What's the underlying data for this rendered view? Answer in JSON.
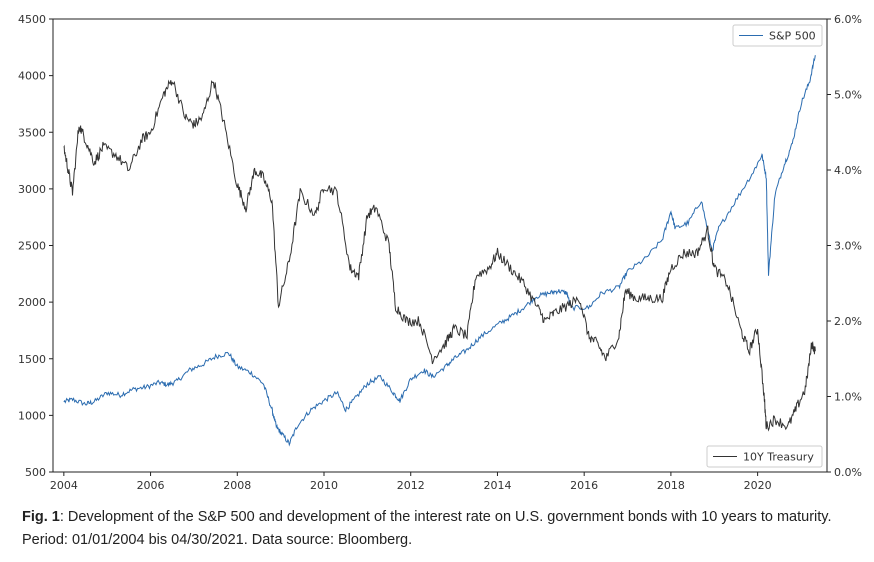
{
  "caption": {
    "label": "Fig. 1",
    "text": ": Development of the S&P 500 and development of the interest rate on U.S. government bonds with 10 years to maturity. Period: 01/01/2004 bis 04/30/2021. Data source: Bloomberg."
  },
  "chart_data": {
    "type": "line",
    "title": "",
    "xlabel": "",
    "x_range": [
      2003.75,
      2021.6
    ],
    "x_ticks": [
      2004,
      2006,
      2008,
      2010,
      2012,
      2014,
      2016,
      2018,
      2020
    ],
    "x_tick_labels": [
      "2004",
      "2006",
      "2008",
      "2010",
      "2012",
      "2014",
      "2016",
      "2018",
      "2020"
    ],
    "left_axis": {
      "ylim": [
        500,
        4500
      ],
      "ticks": [
        500,
        1000,
        1500,
        2000,
        2500,
        3000,
        3500,
        4000,
        4500
      ],
      "tick_labels": [
        "500",
        "1000",
        "1500",
        "2000",
        "2500",
        "3000",
        "3500",
        "4000",
        "4500"
      ]
    },
    "right_axis": {
      "ylim": [
        0.0,
        6.0
      ],
      "ticks": [
        0,
        1,
        2,
        3,
        4,
        5,
        6
      ],
      "tick_labels": [
        "0.0%",
        "1.0%",
        "2.0%",
        "3.0%",
        "4.0%",
        "5.0%",
        "6.0%"
      ]
    },
    "grid": false,
    "series": [
      {
        "name": "S&P 500",
        "axis": "left",
        "color": "#2b6cb0",
        "legend_position": "top-right",
        "x": [
          2004.0,
          2004.2,
          2004.5,
          2004.7,
          2005.0,
          2005.3,
          2005.6,
          2005.9,
          2006.2,
          2006.4,
          2006.6,
          2006.9,
          2007.2,
          2007.5,
          2007.8,
          2008.0,
          2008.3,
          2008.6,
          2008.8,
          2008.9,
          2009.0,
          2009.2,
          2009.4,
          2009.7,
          2010.0,
          2010.3,
          2010.5,
          2010.7,
          2011.0,
          2011.3,
          2011.6,
          2011.75,
          2012.0,
          2012.3,
          2012.5,
          2012.8,
          2013.0,
          2013.3,
          2013.6,
          2014.0,
          2014.3,
          2014.6,
          2014.9,
          2015.2,
          2015.4,
          2015.6,
          2015.7,
          2016.1,
          2016.4,
          2016.8,
          2017.0,
          2017.4,
          2017.8,
          2018.0,
          2018.1,
          2018.4,
          2018.7,
          2018.95,
          2019.1,
          2019.5,
          2019.9,
          2020.1,
          2020.2,
          2020.25,
          2020.4,
          2020.6,
          2020.8,
          2021.0,
          2021.2,
          2021.33
        ],
        "y": [
          1120,
          1140,
          1100,
          1120,
          1200,
          1180,
          1230,
          1250,
          1290,
          1270,
          1300,
          1400,
          1450,
          1520,
          1550,
          1430,
          1380,
          1280,
          1050,
          900,
          850,
          750,
          920,
          1050,
          1130,
          1200,
          1050,
          1140,
          1280,
          1340,
          1200,
          1130,
          1320,
          1400,
          1340,
          1430,
          1500,
          1580,
          1690,
          1800,
          1870,
          1950,
          2050,
          2080,
          2100,
          2080,
          1950,
          1950,
          2080,
          2130,
          2270,
          2380,
          2550,
          2800,
          2650,
          2700,
          2900,
          2450,
          2650,
          2900,
          3150,
          3300,
          3100,
          2250,
          2950,
          3200,
          3400,
          3750,
          3950,
          4180
        ]
      },
      {
        "name": "10Y Treasury",
        "axis": "right",
        "color": "#333333",
        "legend_position": "bottom-right",
        "x": [
          2004.0,
          2004.1,
          2004.2,
          2004.35,
          2004.5,
          2004.7,
          2004.9,
          2005.2,
          2005.5,
          2005.8,
          2006.0,
          2006.3,
          2006.5,
          2006.8,
          2007.0,
          2007.2,
          2007.45,
          2007.7,
          2008.0,
          2008.2,
          2008.4,
          2008.6,
          2008.8,
          2008.95,
          2009.2,
          2009.45,
          2009.8,
          2010.0,
          2010.3,
          2010.6,
          2010.8,
          2011.0,
          2011.2,
          2011.5,
          2011.65,
          2011.9,
          2012.2,
          2012.5,
          2012.8,
          2013.0,
          2013.3,
          2013.5,
          2013.8,
          2014.0,
          2014.3,
          2014.6,
          2014.9,
          2015.1,
          2015.3,
          2015.6,
          2015.9,
          2016.1,
          2016.3,
          2016.5,
          2016.8,
          2016.95,
          2017.2,
          2017.5,
          2017.8,
          2018.0,
          2018.3,
          2018.6,
          2018.85,
          2019.0,
          2019.3,
          2019.6,
          2019.8,
          2020.0,
          2020.15,
          2020.2,
          2020.4,
          2020.7,
          2020.9,
          2021.1,
          2021.25,
          2021.33
        ],
        "y": [
          4.3,
          4.0,
          3.7,
          4.6,
          4.4,
          4.1,
          4.3,
          4.2,
          4.0,
          4.4,
          4.5,
          5.0,
          5.2,
          4.7,
          4.6,
          4.7,
          5.2,
          4.6,
          3.8,
          3.5,
          4.0,
          3.9,
          3.6,
          2.2,
          2.8,
          3.7,
          3.4,
          3.8,
          3.7,
          2.7,
          2.6,
          3.4,
          3.5,
          3.0,
          2.2,
          2.0,
          2.0,
          1.5,
          1.7,
          1.9,
          1.8,
          2.6,
          2.7,
          2.9,
          2.7,
          2.5,
          2.2,
          2.0,
          2.1,
          2.2,
          2.3,
          1.8,
          1.7,
          1.5,
          1.8,
          2.4,
          2.3,
          2.3,
          2.3,
          2.7,
          2.9,
          2.9,
          3.2,
          2.7,
          2.5,
          1.9,
          1.6,
          1.9,
          1.0,
          0.6,
          0.7,
          0.6,
          0.85,
          1.1,
          1.7,
          1.6
        ]
      }
    ]
  }
}
